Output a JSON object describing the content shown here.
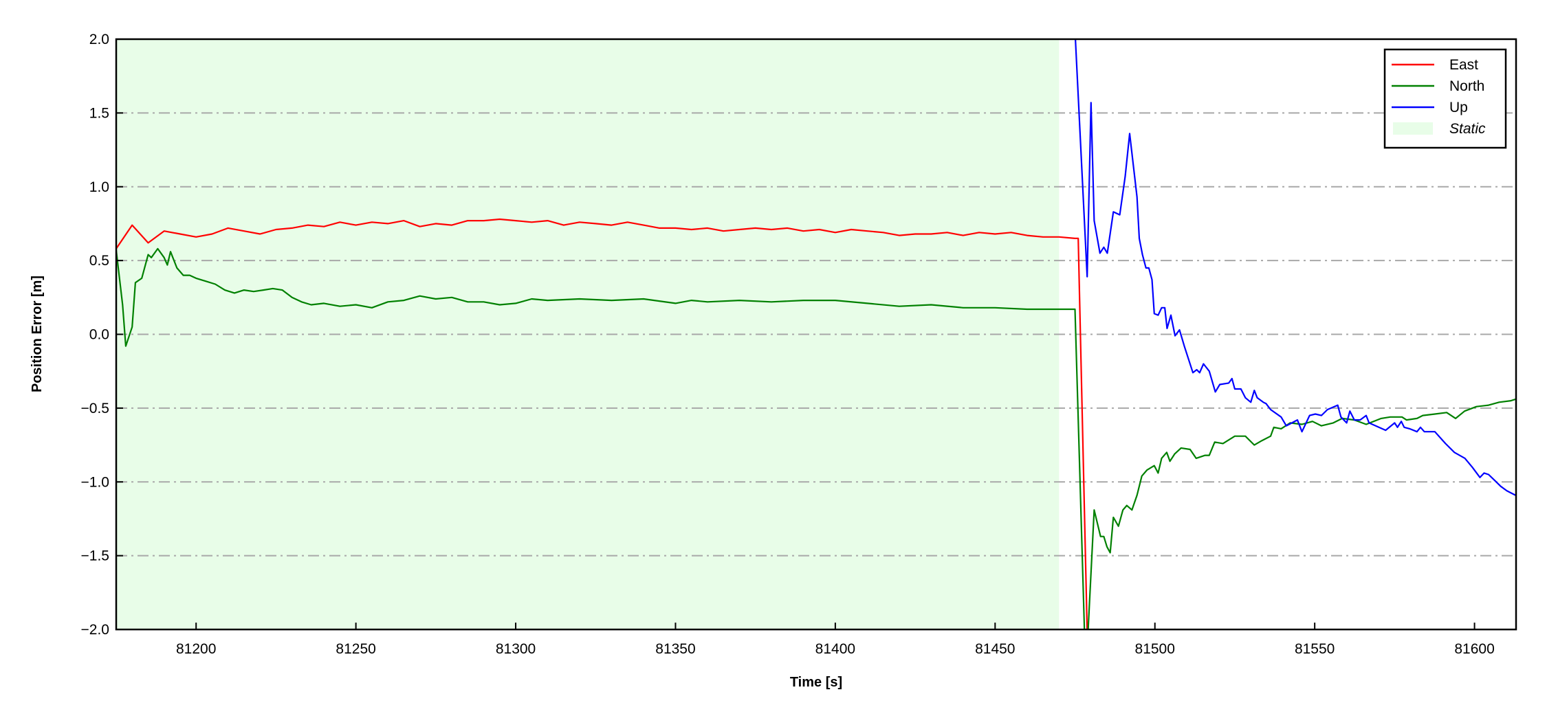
{
  "chart_data": {
    "type": "line",
    "title": "",
    "xlabel": "Time [s]",
    "ylabel": "Position Error [m]",
    "xlim": [
      81175,
      81613
    ],
    "ylim": [
      -2.0,
      2.0
    ],
    "xticks": [
      81200,
      81250,
      81300,
      81350,
      81400,
      81450,
      81500,
      81550,
      81600
    ],
    "xtick_labels": [
      "81200",
      "81250",
      "81300",
      "81350",
      "81400",
      "81450",
      "81500",
      "81550",
      "81600"
    ],
    "yticks": [
      -2.0,
      -1.5,
      -1.0,
      -0.5,
      0.0,
      0.5,
      1.0,
      1.5,
      2.0
    ],
    "ytick_labels": [
      "−2.0",
      "−1.5",
      "−1.0",
      "−0.5",
      "0.0",
      "0.5",
      "1.0",
      "1.5",
      "2.0"
    ],
    "grid": "horizontal dash-dot",
    "legend_placement": "top-right",
    "shaded_region": {
      "name": "Static",
      "x": [
        81175,
        81470
      ],
      "color": "#e8fde8"
    },
    "series": [
      {
        "name": "East",
        "color": "#ff0000",
        "x": [
          81175,
          81180,
          81185,
          81190,
          81195,
          81200,
          81205,
          81210,
          81215,
          81220,
          81225,
          81230,
          81235,
          81240,
          81245,
          81250,
          81255,
          81260,
          81265,
          81270,
          81275,
          81280,
          81285,
          81290,
          81295,
          81300,
          81305,
          81310,
          81315,
          81320,
          81325,
          81330,
          81335,
          81340,
          81345,
          81350,
          81355,
          81360,
          81365,
          81370,
          81375,
          81380,
          81385,
          81390,
          81395,
          81400,
          81405,
          81410,
          81415,
          81420,
          81425,
          81430,
          81435,
          81440,
          81445,
          81450,
          81455,
          81460,
          81465,
          81470,
          81475,
          81476,
          81479
        ],
        "y": [
          0.58,
          0.74,
          0.62,
          0.7,
          0.68,
          0.66,
          0.68,
          0.72,
          0.7,
          0.68,
          0.71,
          0.72,
          0.74,
          0.73,
          0.76,
          0.74,
          0.76,
          0.75,
          0.77,
          0.73,
          0.75,
          0.74,
          0.77,
          0.77,
          0.78,
          0.77,
          0.76,
          0.77,
          0.74,
          0.76,
          0.75,
          0.74,
          0.76,
          0.74,
          0.72,
          0.72,
          0.71,
          0.72,
          0.7,
          0.71,
          0.72,
          0.71,
          0.72,
          0.7,
          0.71,
          0.69,
          0.71,
          0.7,
          0.69,
          0.67,
          0.68,
          0.68,
          0.69,
          0.67,
          0.69,
          0.68,
          0.69,
          0.67,
          0.66,
          0.66,
          0.65,
          0.65,
          -2.2
        ]
      },
      {
        "name": "North",
        "color": "#008000",
        "x": [
          81175,
          81177,
          81178,
          81180,
          81181,
          81183,
          81185,
          81186,
          81188,
          81190,
          81191,
          81192,
          81194,
          81196,
          81198,
          81200,
          81203,
          81206,
          81209,
          81212,
          81215,
          81218,
          81221,
          81224,
          81227,
          81230,
          81233,
          81236,
          81240,
          81245,
          81250,
          81255,
          81260,
          81265,
          81270,
          81275,
          81280,
          81285,
          81290,
          81295,
          81300,
          81305,
          81310,
          81320,
          81330,
          81340,
          81350,
          81355,
          81360,
          81370,
          81380,
          81390,
          81400,
          81410,
          81420,
          81430,
          81440,
          81450,
          81460,
          81470,
          81475,
          81478,
          81479,
          81481,
          81483,
          81484,
          81485,
          81486,
          81487,
          81488.6,
          81490,
          81491.2,
          81492.8,
          81494.4,
          81495.9,
          81497.5,
          81499.8,
          81501,
          81502.1,
          81503.7,
          81504.7,
          81506.2,
          81508.2,
          81511,
          81512.9,
          81515.7,
          81517,
          81518.7,
          81521.3,
          81525,
          81528.3,
          81531.1,
          81533.5,
          81536.2,
          81537.2,
          81539.5,
          81542.3,
          81546,
          81549.3,
          81552.1,
          81555.8,
          81558.6,
          81562.4,
          81566.1,
          81570.8,
          81573.6,
          81577.3,
          81578.7,
          81582,
          81583.8,
          81587.6,
          81591.3,
          81594.1,
          81596.9,
          81600.6,
          81604.4,
          81607.7,
          81611.4,
          81612.8
        ],
        "y": [
          0.57,
          0.2,
          -0.08,
          0.05,
          0.35,
          0.38,
          0.54,
          0.52,
          0.58,
          0.52,
          0.47,
          0.56,
          0.45,
          0.4,
          0.4,
          0.38,
          0.36,
          0.34,
          0.3,
          0.28,
          0.3,
          0.29,
          0.3,
          0.31,
          0.3,
          0.25,
          0.22,
          0.2,
          0.21,
          0.19,
          0.2,
          0.18,
          0.22,
          0.23,
          0.26,
          0.24,
          0.25,
          0.22,
          0.22,
          0.2,
          0.21,
          0.24,
          0.23,
          0.24,
          0.23,
          0.24,
          0.21,
          0.23,
          0.22,
          0.23,
          0.22,
          0.23,
          0.23,
          0.21,
          0.19,
          0.2,
          0.18,
          0.18,
          0.17,
          0.17,
          0.17,
          -2.05,
          -2.05,
          -1.19,
          -1.37,
          -1.37,
          -1.44,
          -1.48,
          -1.24,
          -1.3,
          -1.19,
          -1.16,
          -1.19,
          -1.09,
          -0.96,
          -0.92,
          -0.89,
          -0.94,
          -0.84,
          -0.8,
          -0.86,
          -0.81,
          -0.77,
          -0.78,
          -0.84,
          -0.82,
          -0.82,
          -0.73,
          -0.74,
          -0.69,
          -0.69,
          -0.75,
          -0.72,
          -0.69,
          -0.63,
          -0.64,
          -0.6,
          -0.61,
          -0.59,
          -0.62,
          -0.6,
          -0.57,
          -0.58,
          -0.61,
          -0.57,
          -0.56,
          -0.56,
          -0.58,
          -0.57,
          -0.55,
          -0.54,
          -0.53,
          -0.57,
          -0.52,
          -0.49,
          -0.48,
          -0.46,
          -0.45,
          -0.44
        ]
      },
      {
        "name": "Up",
        "color": "#0000ff",
        "x": [
          81474.6,
          81475.1,
          81478.8,
          81480,
          81481,
          81482.8,
          81484,
          81485.1,
          81487,
          81489,
          81490.7,
          81492.1,
          81494.4,
          81495.1,
          81496.1,
          81497.2,
          81498.1,
          81499.1,
          81499.8,
          81501,
          81502.1,
          81503.1,
          81503.8,
          81505,
          81506.3,
          81507.7,
          81509.2,
          81511.9,
          81513.1,
          81514,
          81515.2,
          81517,
          81518.9,
          81520.3,
          81523.1,
          81524.1,
          81525,
          81526.9,
          81528.3,
          81530,
          81531.1,
          81532,
          81533.9,
          81534.8,
          81536.2,
          81539.5,
          81541.1,
          81544.6,
          81546,
          81548.4,
          81550.2,
          81552.1,
          81554,
          81557.2,
          81558.2,
          81560,
          81561,
          81562.4,
          81564.2,
          81566.1,
          81567,
          81572.2,
          81575,
          81575.9,
          81577.1,
          81578,
          81579.7,
          81582,
          81583.1,
          81584.3,
          81587.6,
          81590.9,
          81593.7,
          81597,
          81599.3,
          81601.7,
          81603,
          81604.4,
          81606.3,
          81608.2,
          81610.1,
          81612.8
        ],
        "y": [
          2.1,
          2.01,
          0.39,
          1.57,
          0.77,
          0.55,
          0.59,
          0.55,
          0.83,
          0.81,
          1.07,
          1.36,
          0.93,
          0.65,
          0.54,
          0.45,
          0.45,
          0.37,
          0.14,
          0.13,
          0.18,
          0.18,
          0.04,
          0.13,
          -0.01,
          0.03,
          -0.08,
          -0.26,
          -0.24,
          -0.26,
          -0.2,
          -0.25,
          -0.39,
          -0.34,
          -0.33,
          -0.3,
          -0.37,
          -0.37,
          -0.43,
          -0.46,
          -0.38,
          -0.43,
          -0.46,
          -0.47,
          -0.51,
          -0.56,
          -0.62,
          -0.58,
          -0.66,
          -0.55,
          -0.54,
          -0.55,
          -0.51,
          -0.48,
          -0.56,
          -0.6,
          -0.52,
          -0.58,
          -0.58,
          -0.55,
          -0.6,
          -0.65,
          -0.6,
          -0.63,
          -0.59,
          -0.63,
          -0.64,
          -0.66,
          -0.63,
          -0.66,
          -0.66,
          -0.74,
          -0.8,
          -0.84,
          -0.9,
          -0.97,
          -0.94,
          -0.95,
          -0.99,
          -1.03,
          -1.06,
          -1.09
        ]
      }
    ]
  }
}
